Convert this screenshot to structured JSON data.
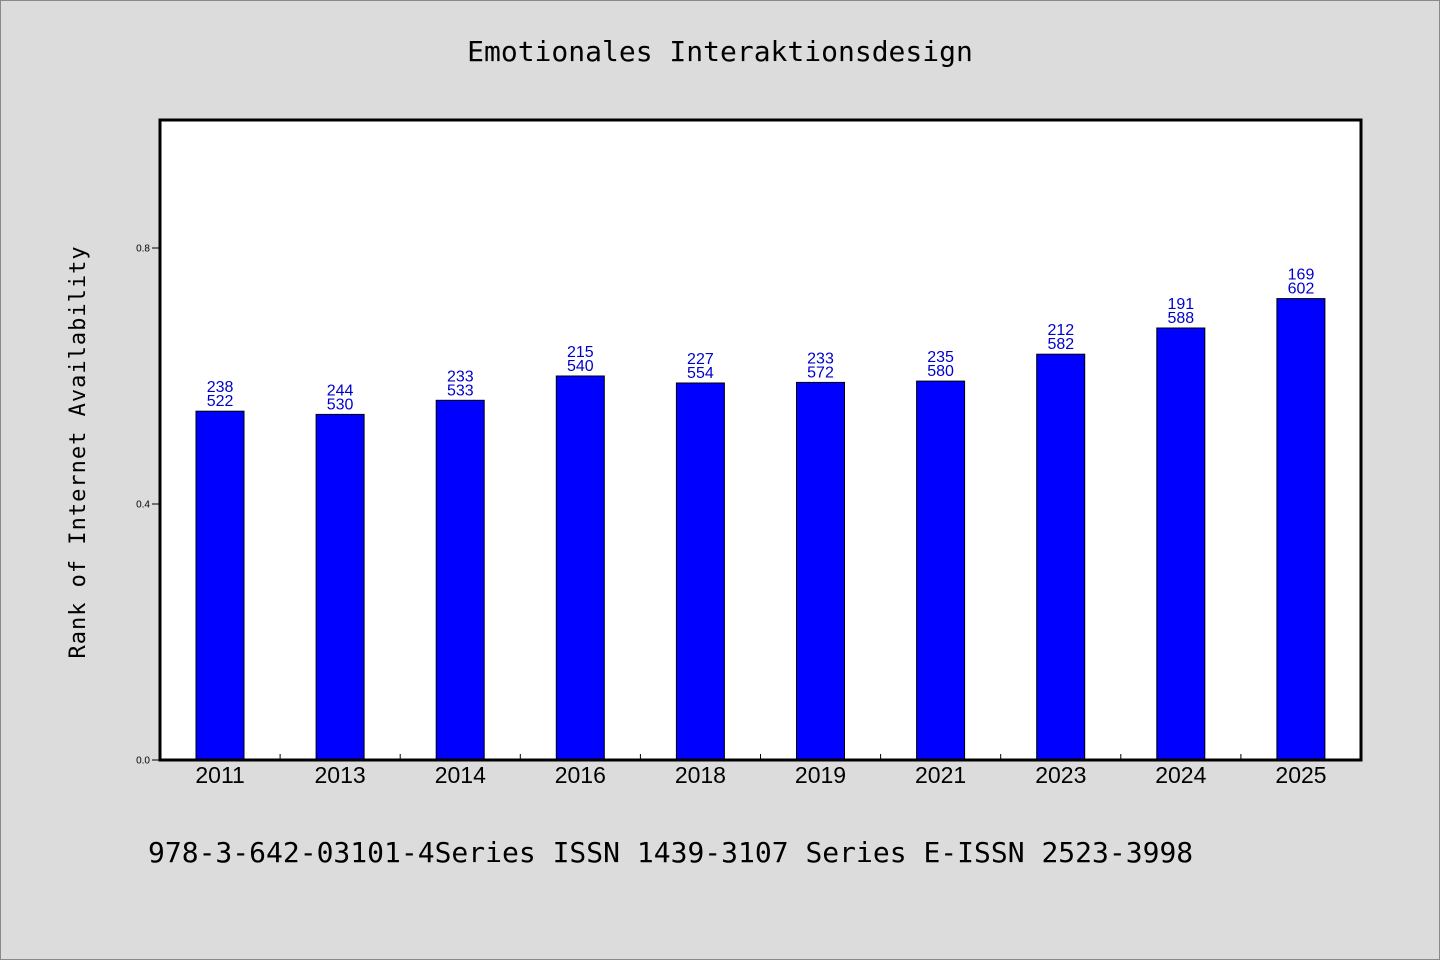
{
  "chart_data": {
    "type": "bar",
    "title": "Emotionales Interaktionsdesign",
    "ylabel": "Rank of Internet Availability",
    "xlabel": "",
    "footer": "978-3-642-03101-4Series ISSN 1439-3107 Series E-ISSN 2523-3998",
    "categories": [
      "2011",
      "2013",
      "2014",
      "2016",
      "2018",
      "2019",
      "2021",
      "2023",
      "2024",
      "2025"
    ],
    "values": [
      0.545,
      0.54,
      0.562,
      0.6,
      0.589,
      0.59,
      0.592,
      0.634,
      0.675,
      0.721
    ],
    "label_top": [
      "238",
      "244",
      "233",
      "215",
      "227",
      "233",
      "235",
      "212",
      "191",
      "169"
    ],
    "label_bottom": [
      "522",
      "530",
      "533",
      "540",
      "554",
      "572",
      "580",
      "582",
      "588",
      "602"
    ],
    "ylim": [
      0,
      1.0
    ],
    "yticks": [
      0.0,
      0.4,
      0.8
    ],
    "ytick_labels": [
      "0.0",
      "0.4",
      "0.8"
    ],
    "grid": false,
    "legend": "none",
    "bar_color": "#0000ff",
    "label_color": "#0000cc",
    "background": "#dcdcdc",
    "plot_background": "#ffffff"
  }
}
